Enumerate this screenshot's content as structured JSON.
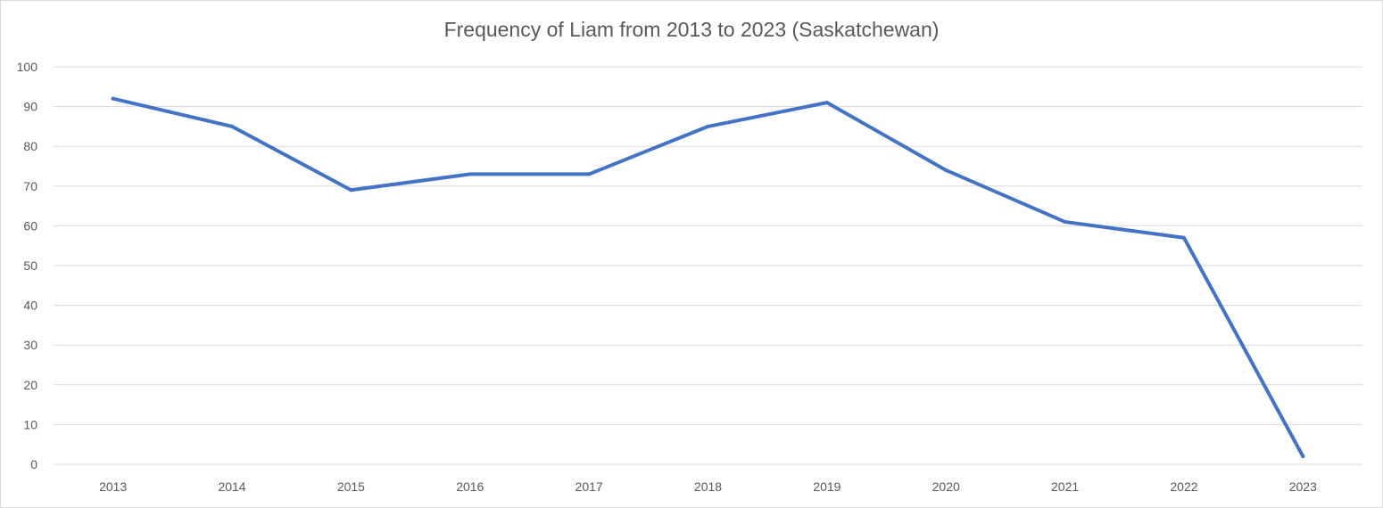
{
  "chart_data": {
    "type": "line",
    "title": "Frequency of Liam from 2013 to 2023 (Saskatchewan)",
    "xlabel": "",
    "ylabel": "",
    "categories": [
      "2013",
      "2014",
      "2015",
      "2016",
      "2017",
      "2018",
      "2019",
      "2020",
      "2021",
      "2022",
      "2023"
    ],
    "series": [
      {
        "values": [
          92,
          85,
          69,
          73,
          73,
          85,
          91,
          74,
          61,
          57,
          2
        ],
        "color": "#4472C4"
      }
    ],
    "ylim": [
      0,
      100
    ],
    "yticks": [
      "0",
      "10",
      "20",
      "30",
      "40",
      "50",
      "60",
      "70",
      "80",
      "90",
      "100"
    ],
    "grid": true,
    "legend": "none"
  }
}
